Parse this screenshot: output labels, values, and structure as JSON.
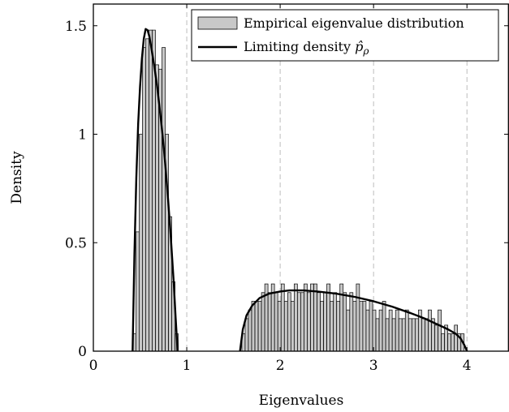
{
  "chart_data": {
    "type": "bar",
    "xlabel": "Eigenvalues",
    "ylabel": "Density",
    "xlim": [
      0,
      4.45
    ],
    "ylim": [
      0,
      1.6
    ],
    "x_ticks": [
      0,
      1,
      2,
      3,
      4
    ],
    "x_tick_labels": [
      "0",
      "1",
      "2",
      "3",
      "4"
    ],
    "y_ticks": [
      0,
      0.5,
      1,
      1.5
    ],
    "y_tick_labels": [
      "0",
      "0.5",
      "1",
      "1.5"
    ],
    "grid": "vertical-dashed",
    "legend_position": "top-right",
    "histogram": {
      "name": "Empirical eigenvalue distribution",
      "bin_width": 0.0345,
      "fill": "#c8c8c8",
      "bins": [
        {
          "x": 0.42,
          "y": 0.08
        },
        {
          "x": 0.455,
          "y": 0.55
        },
        {
          "x": 0.49,
          "y": 1.0
        },
        {
          "x": 0.525,
          "y": 1.4
        },
        {
          "x": 0.56,
          "y": 1.44
        },
        {
          "x": 0.595,
          "y": 1.48
        },
        {
          "x": 0.63,
          "y": 1.48
        },
        {
          "x": 0.665,
          "y": 1.32
        },
        {
          "x": 0.7,
          "y": 1.3
        },
        {
          "x": 0.735,
          "y": 1.4
        },
        {
          "x": 0.77,
          "y": 1.0
        },
        {
          "x": 0.805,
          "y": 0.62
        },
        {
          "x": 0.84,
          "y": 0.32
        },
        {
          "x": 0.875,
          "y": 0.08
        },
        {
          "x": 1.59,
          "y": 0.08
        },
        {
          "x": 1.625,
          "y": 0.15
        },
        {
          "x": 1.66,
          "y": 0.19
        },
        {
          "x": 1.695,
          "y": 0.23
        },
        {
          "x": 1.73,
          "y": 0.23
        },
        {
          "x": 1.765,
          "y": 0.23
        },
        {
          "x": 1.8,
          "y": 0.27
        },
        {
          "x": 1.835,
          "y": 0.31
        },
        {
          "x": 1.87,
          "y": 0.27
        },
        {
          "x": 1.905,
          "y": 0.31
        },
        {
          "x": 1.94,
          "y": 0.27
        },
        {
          "x": 1.975,
          "y": 0.23
        },
        {
          "x": 2.01,
          "y": 0.31
        },
        {
          "x": 2.045,
          "y": 0.23
        },
        {
          "x": 2.08,
          "y": 0.27
        },
        {
          "x": 2.115,
          "y": 0.23
        },
        {
          "x": 2.15,
          "y": 0.31
        },
        {
          "x": 2.185,
          "y": 0.27
        },
        {
          "x": 2.22,
          "y": 0.27
        },
        {
          "x": 2.255,
          "y": 0.31
        },
        {
          "x": 2.29,
          "y": 0.27
        },
        {
          "x": 2.325,
          "y": 0.31
        },
        {
          "x": 2.36,
          "y": 0.31
        },
        {
          "x": 2.395,
          "y": 0.27
        },
        {
          "x": 2.43,
          "y": 0.23
        },
        {
          "x": 2.465,
          "y": 0.27
        },
        {
          "x": 2.5,
          "y": 0.31
        },
        {
          "x": 2.535,
          "y": 0.23
        },
        {
          "x": 2.57,
          "y": 0.27
        },
        {
          "x": 2.605,
          "y": 0.23
        },
        {
          "x": 2.64,
          "y": 0.31
        },
        {
          "x": 2.675,
          "y": 0.27
        },
        {
          "x": 2.71,
          "y": 0.19
        },
        {
          "x": 2.745,
          "y": 0.27
        },
        {
          "x": 2.78,
          "y": 0.23
        },
        {
          "x": 2.815,
          "y": 0.31
        },
        {
          "x": 2.85,
          "y": 0.23
        },
        {
          "x": 2.885,
          "y": 0.23
        },
        {
          "x": 2.92,
          "y": 0.19
        },
        {
          "x": 2.955,
          "y": 0.23
        },
        {
          "x": 2.99,
          "y": 0.19
        },
        {
          "x": 3.025,
          "y": 0.15
        },
        {
          "x": 3.06,
          "y": 0.19
        },
        {
          "x": 3.095,
          "y": 0.23
        },
        {
          "x": 3.13,
          "y": 0.15
        },
        {
          "x": 3.165,
          "y": 0.19
        },
        {
          "x": 3.2,
          "y": 0.15
        },
        {
          "x": 3.235,
          "y": 0.19
        },
        {
          "x": 3.27,
          "y": 0.15
        },
        {
          "x": 3.305,
          "y": 0.15
        },
        {
          "x": 3.34,
          "y": 0.19
        },
        {
          "x": 3.375,
          "y": 0.15
        },
        {
          "x": 3.41,
          "y": 0.15
        },
        {
          "x": 3.445,
          "y": 0.15
        },
        {
          "x": 3.48,
          "y": 0.19
        },
        {
          "x": 3.515,
          "y": 0.15
        },
        {
          "x": 3.55,
          "y": 0.15
        },
        {
          "x": 3.585,
          "y": 0.19
        },
        {
          "x": 3.62,
          "y": 0.15
        },
        {
          "x": 3.655,
          "y": 0.12
        },
        {
          "x": 3.69,
          "y": 0.19
        },
        {
          "x": 3.725,
          "y": 0.08
        },
        {
          "x": 3.76,
          "y": 0.12
        },
        {
          "x": 3.795,
          "y": 0.08
        },
        {
          "x": 3.83,
          "y": 0.08
        },
        {
          "x": 3.865,
          "y": 0.12
        },
        {
          "x": 3.9,
          "y": 0.08
        },
        {
          "x": 3.935,
          "y": 0.08
        }
      ]
    },
    "series": [
      {
        "name": "Limiting density p̂ρ",
        "type": "line",
        "color": "#000000",
        "segments": [
          [
            [
              0.42,
              0.0
            ],
            [
              0.44,
              0.45
            ],
            [
              0.46,
              0.8
            ],
            [
              0.48,
              1.05
            ],
            [
              0.5,
              1.22
            ],
            [
              0.52,
              1.35
            ],
            [
              0.54,
              1.44
            ],
            [
              0.56,
              1.485
            ],
            [
              0.58,
              1.48
            ],
            [
              0.6,
              1.45
            ],
            [
              0.62,
              1.4
            ],
            [
              0.65,
              1.32
            ],
            [
              0.68,
              1.23
            ],
            [
              0.71,
              1.12
            ],
            [
              0.74,
              1.0
            ],
            [
              0.77,
              0.86
            ],
            [
              0.8,
              0.7
            ],
            [
              0.83,
              0.52
            ],
            [
              0.86,
              0.32
            ],
            [
              0.88,
              0.16
            ],
            [
              0.895,
              0.05
            ],
            [
              0.9,
              0.0
            ]
          ],
          [
            [
              1.57,
              0.0
            ],
            [
              1.6,
              0.1
            ],
            [
              1.64,
              0.165
            ],
            [
              1.7,
              0.21
            ],
            [
              1.78,
              0.245
            ],
            [
              1.88,
              0.265
            ],
            [
              2.0,
              0.275
            ],
            [
              2.1,
              0.28
            ],
            [
              2.25,
              0.28
            ],
            [
              2.4,
              0.275
            ],
            [
              2.6,
              0.265
            ],
            [
              2.8,
              0.25
            ],
            [
              3.0,
              0.23
            ],
            [
              3.2,
              0.205
            ],
            [
              3.4,
              0.175
            ],
            [
              3.55,
              0.15
            ],
            [
              3.7,
              0.12
            ],
            [
              3.8,
              0.1
            ],
            [
              3.88,
              0.08
            ],
            [
              3.93,
              0.06
            ],
            [
              3.97,
              0.03
            ],
            [
              3.99,
              0.01
            ],
            [
              4.0,
              0.0
            ]
          ]
        ]
      }
    ],
    "legend": [
      {
        "label": "Empirical eigenvalue distribution",
        "kind": "bar"
      },
      {
        "label": "Limiting density ",
        "math": "p̂",
        "sub": "ρ",
        "kind": "line"
      }
    ]
  }
}
